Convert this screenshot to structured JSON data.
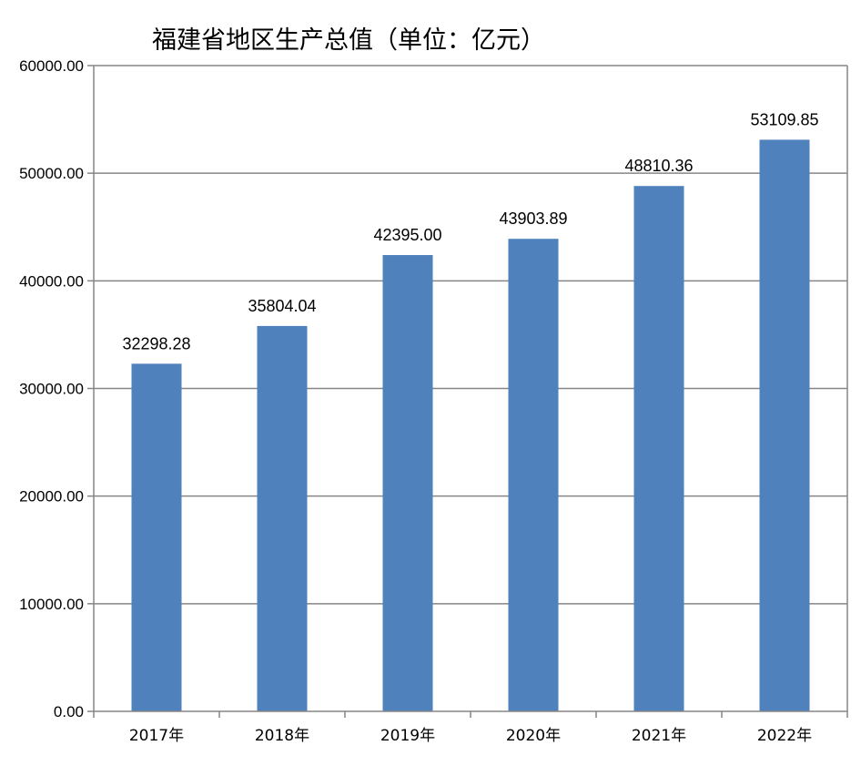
{
  "chart_data": {
    "type": "bar",
    "title": "福建省地区生产总值（单位：亿元）",
    "categories": [
      "2017年",
      "2018年",
      "2019年",
      "2020年",
      "2021年",
      "2022年"
    ],
    "values": [
      32298.28,
      35804.04,
      42395.0,
      43903.89,
      48810.36,
      53109.85
    ],
    "data_labels": [
      "32298.28",
      "35804.04",
      "42395.00",
      "43903.89",
      "48810.36",
      "53109.85"
    ],
    "ylim": [
      0,
      60000
    ],
    "yticks": [
      "0.00",
      "10000.00",
      "20000.00",
      "30000.00",
      "40000.00",
      "50000.00",
      "60000.00"
    ],
    "xlabel": "",
    "ylabel": "",
    "grid": true,
    "legend": "none",
    "bar_color": "#4f81bd",
    "grid_color": "#868686"
  }
}
